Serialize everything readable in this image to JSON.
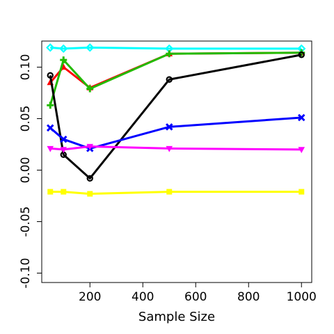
{
  "chart_data": {
    "type": "line",
    "title": "",
    "xlabel": "Sample Size",
    "ylabel": "",
    "xlim": [
      50,
      1000
    ],
    "ylim": [
      -0.1,
      0.12
    ],
    "x_ticks": [
      200,
      400,
      600,
      800,
      1000
    ],
    "x_tick_labels": [
      "200",
      "400",
      "600",
      "800",
      "1000"
    ],
    "y_ticks": [
      -0.1,
      -0.05,
      0.0,
      0.05,
      0.1
    ],
    "y_tick_labels": [
      "-0.10",
      "-0.05",
      "0.00",
      "0.05",
      "0.10"
    ],
    "grid": false,
    "legend": "none",
    "x": [
      50,
      100,
      200,
      500,
      1000
    ],
    "series": [
      {
        "color": "#00ffff",
        "marker": "diamond",
        "values": [
          0.119,
          0.118,
          0.119,
          0.118,
          0.118
        ]
      },
      {
        "color": "#ff0000",
        "marker": "triangle-up",
        "values": [
          0.085,
          0.1,
          0.08,
          0.113,
          0.114
        ]
      },
      {
        "color": "#22bb00",
        "marker": "plus",
        "values": [
          0.063,
          0.107,
          0.079,
          0.113,
          0.114
        ]
      },
      {
        "color": "#000000",
        "marker": "circle",
        "values": [
          0.092,
          0.015,
          -0.008,
          0.088,
          0.112
        ]
      },
      {
        "color": "#0000ff",
        "marker": "cross",
        "values": [
          0.041,
          0.03,
          0.021,
          0.042,
          0.051
        ]
      },
      {
        "color": "#ff00ff",
        "marker": "triangle-down",
        "values": [
          0.021,
          0.02,
          0.023,
          0.021,
          0.02
        ]
      },
      {
        "color": "#ffff00",
        "marker": "square",
        "values": [
          -0.021,
          -0.021,
          -0.023,
          -0.021,
          -0.021
        ]
      }
    ]
  }
}
